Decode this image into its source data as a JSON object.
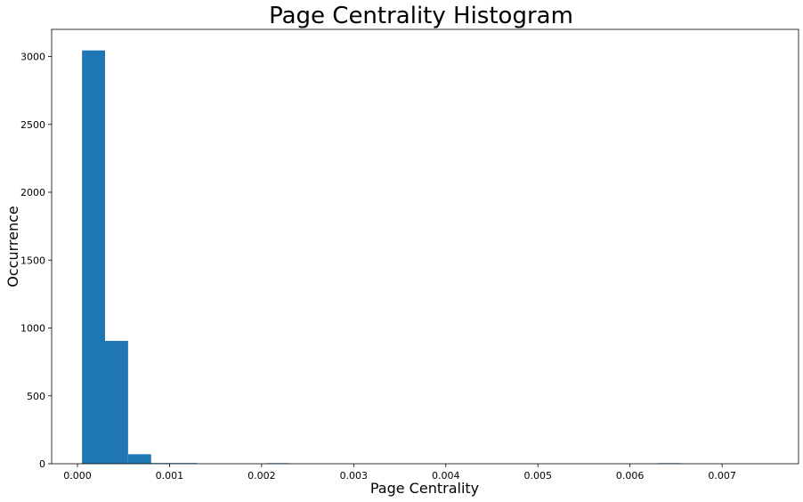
{
  "chart_data": {
    "type": "bar",
    "subtype": "histogram",
    "title": "Page Centrality Histogram",
    "xlabel": "Page Centrality",
    "ylabel": "Occurrence",
    "xlim": [
      -0.00028,
      0.00783
    ],
    "ylim": [
      0,
      3200
    ],
    "xticks": [
      0.0,
      0.001,
      0.002,
      0.003,
      0.004,
      0.005,
      0.006,
      0.007
    ],
    "xtick_labels": [
      "0.000",
      "0.001",
      "0.002",
      "0.003",
      "0.004",
      "0.005",
      "0.006",
      "0.007"
    ],
    "yticks": [
      0,
      500,
      1000,
      1500,
      2000,
      2500,
      3000
    ],
    "ytick_labels": [
      "0",
      "500",
      "1000",
      "1500",
      "2000",
      "2500",
      "3000"
    ],
    "bin_width": 0.00025,
    "bins": [
      {
        "x0": 5e-05,
        "count": 3045
      },
      {
        "x0": 0.0003,
        "count": 905
      },
      {
        "x0": 0.00055,
        "count": 70
      },
      {
        "x0": 0.0008,
        "count": 5
      },
      {
        "x0": 0.00105,
        "count": 5
      },
      {
        "x0": 0.00205,
        "count": 4
      },
      {
        "x0": 0.0063,
        "count": 4
      }
    ],
    "bar_color": "#1f77b4",
    "grid": false,
    "legend": "none"
  }
}
